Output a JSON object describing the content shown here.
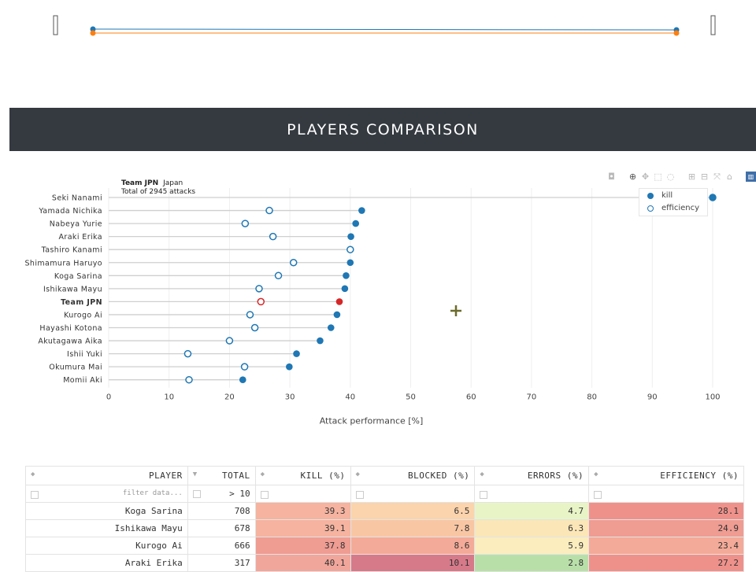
{
  "banner": {
    "title": "PLAYERS COMPARISON"
  },
  "chart_data": {
    "type": "dot",
    "title": "Team JPN",
    "title_suffix": "Japan",
    "subtitle": "Total of 2945 attacks",
    "xlabel": "Attack performance [%]",
    "xlim": [
      0,
      100
    ],
    "xticks": [
      0,
      10,
      20,
      30,
      40,
      50,
      60,
      70,
      80,
      90,
      100
    ],
    "grid": true,
    "legend_placement": "top-right",
    "categories": [
      "Seki Nanami",
      "Yamada Nichika",
      "Nabeya Yurie",
      "Araki Erika",
      "Tashiro Kanami",
      "Shimamura Haruyo",
      "Koga Sarina",
      "Ishikawa Mayu",
      "Team JPN",
      "Kurogo Ai",
      "Hayashi Kotona",
      "Akutagawa Aika",
      "Ishii Yuki",
      "Okumura Mai",
      "Momii Aki"
    ],
    "highlight": "Team JPN",
    "series": [
      {
        "name": "kill",
        "values": [
          100,
          41.9,
          40.9,
          40.1,
          null,
          40.0,
          39.3,
          39.1,
          38.2,
          37.8,
          36.8,
          35.0,
          31.1,
          29.9,
          22.2
        ]
      },
      {
        "name": "efficiency",
        "values": [
          100,
          26.6,
          22.6,
          27.2,
          40.0,
          30.6,
          28.1,
          24.9,
          25.2,
          23.4,
          24.2,
          20.0,
          13.1,
          22.5,
          13.3
        ]
      }
    ],
    "colors": {
      "kill": "#1f77b4",
      "efficiency": "#1f77b4",
      "highlight": "#d62728"
    }
  },
  "modebar": {
    "icons": [
      "camera-icon",
      "zoom-icon",
      "pan-icon",
      "box-select-icon",
      "lasso-icon",
      "zoom-in-icon",
      "zoom-out-icon",
      "autoscale-icon",
      "home-icon",
      "plotly-logo-icon"
    ]
  },
  "table": {
    "headers": [
      "PLAYER",
      "TOTAL",
      "KILL (%)",
      "BLOCKED (%)",
      "ERRORS (%)",
      "EFFICIENCY (%)"
    ],
    "filter_placeholder": "filter data...",
    "filter_total": "> 10",
    "rows": [
      {
        "player": "Koga Sarina",
        "total": "708",
        "kill": "39.3",
        "blocked": "6.5",
        "errors": "4.7",
        "eff": "28.1"
      },
      {
        "player": "Ishikawa Mayu",
        "total": "678",
        "kill": "39.1",
        "blocked": "7.8",
        "errors": "6.3",
        "eff": "24.9"
      },
      {
        "player": "Kurogo Ai",
        "total": "666",
        "kill": "37.8",
        "blocked": "8.6",
        "errors": "5.9",
        "eff": "23.4"
      },
      {
        "player": "Araki Erika",
        "total": "317",
        "kill": "40.1",
        "blocked": "10.1",
        "errors": "2.8",
        "eff": "27.2"
      }
    ],
    "colors": {
      "kill": [
        "#f5b3a0",
        "#f5b3a0",
        "#ef9c93",
        "#f1a69b"
      ],
      "blocked": [
        "#fbd3ac",
        "#f9c6a4",
        "#f4aa98",
        "#d67a8a"
      ],
      "errors": [
        "#e8f4c6",
        "#fbe6b8",
        "#fbedbe",
        "#b9dfa9"
      ],
      "eff": [
        "#ef918b",
        "#ef9c93",
        "#f4aa98",
        "#ef918b"
      ]
    }
  }
}
